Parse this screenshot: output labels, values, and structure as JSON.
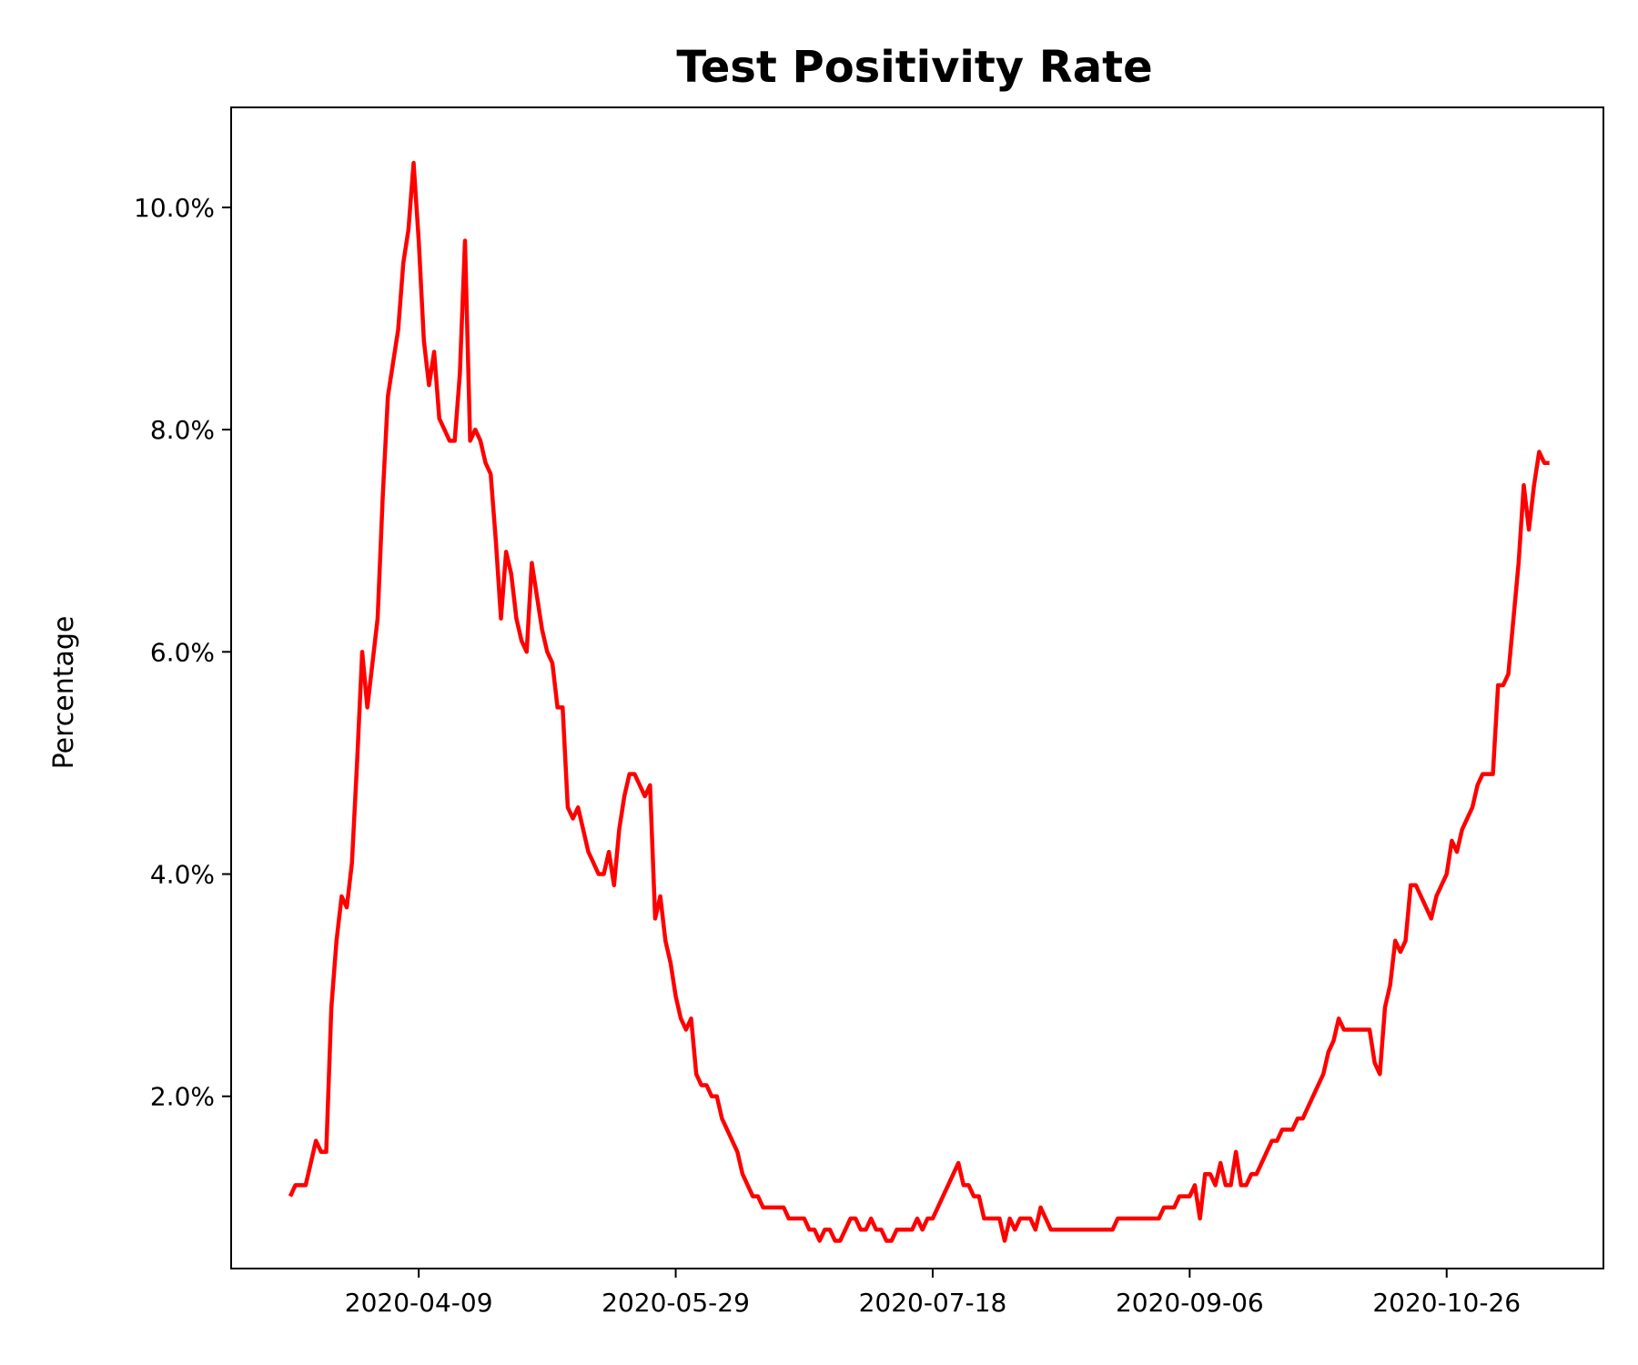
{
  "chart_data": {
    "type": "line",
    "title": "Test Positivity Rate",
    "xlabel": "",
    "ylabel": "Percentage",
    "x_start": "2020-03-15",
    "x_ticks": [
      {
        "date": "2020-04-09",
        "day": 25,
        "label": "2020-04-09"
      },
      {
        "date": "2020-05-29",
        "day": 75,
        "label": "2020-05-29"
      },
      {
        "date": "2020-07-18",
        "day": 125,
        "label": "2020-07-18"
      },
      {
        "date": "2020-09-06",
        "day": 175,
        "label": "2020-09-06"
      },
      {
        "date": "2020-10-26",
        "day": 225,
        "label": "2020-10-26"
      }
    ],
    "y_ticks": [
      {
        "value": 2,
        "label": "2.0%"
      },
      {
        "value": 4,
        "label": "4.0%"
      },
      {
        "value": 6,
        "label": "6.0%"
      },
      {
        "value": 8,
        "label": "8.0%"
      },
      {
        "value": 10,
        "label": "10.0%"
      }
    ],
    "xlim": [
      -11.5,
      255.5
    ],
    "ylim": [
      0.45,
      10.9
    ],
    "grid": false,
    "legend": "none",
    "series": [
      {
        "color": "#ff0000",
        "values": [
          [
            0,
            1.1
          ],
          [
            1,
            1.2
          ],
          [
            2,
            1.2
          ],
          [
            3,
            1.2
          ],
          [
            4,
            1.4
          ],
          [
            5,
            1.6
          ],
          [
            6,
            1.5
          ],
          [
            7,
            1.5
          ],
          [
            8,
            2.8
          ],
          [
            9,
            3.4
          ],
          [
            10,
            3.8
          ],
          [
            11,
            3.7
          ],
          [
            12,
            4.1
          ],
          [
            13,
            5.0
          ],
          [
            14,
            6.0
          ],
          [
            15,
            5.5
          ],
          [
            16,
            5.9
          ],
          [
            17,
            6.3
          ],
          [
            18,
            7.4
          ],
          [
            19,
            8.3
          ],
          [
            20,
            8.6
          ],
          [
            21,
            8.9
          ],
          [
            22,
            9.5
          ],
          [
            23,
            9.8
          ],
          [
            24,
            10.4
          ],
          [
            25,
            9.7
          ],
          [
            26,
            8.8
          ],
          [
            27,
            8.4
          ],
          [
            28,
            8.7
          ],
          [
            29,
            8.1
          ],
          [
            30,
            8.0
          ],
          [
            31,
            7.9
          ],
          [
            32,
            7.9
          ],
          [
            33,
            8.5
          ],
          [
            34,
            9.7
          ],
          [
            35,
            7.9
          ],
          [
            36,
            8.0
          ],
          [
            37,
            7.9
          ],
          [
            38,
            7.7
          ],
          [
            39,
            7.6
          ],
          [
            40,
            7.0
          ],
          [
            41,
            6.3
          ],
          [
            42,
            6.9
          ],
          [
            43,
            6.7
          ],
          [
            44,
            6.3
          ],
          [
            45,
            6.1
          ],
          [
            46,
            6.0
          ],
          [
            47,
            6.8
          ],
          [
            48,
            6.5
          ],
          [
            49,
            6.2
          ],
          [
            50,
            6.0
          ],
          [
            51,
            5.9
          ],
          [
            52,
            5.5
          ],
          [
            53,
            5.5
          ],
          [
            54,
            4.6
          ],
          [
            55,
            4.5
          ],
          [
            56,
            4.6
          ],
          [
            57,
            4.4
          ],
          [
            58,
            4.2
          ],
          [
            59,
            4.1
          ],
          [
            60,
            4.0
          ],
          [
            61,
            4.0
          ],
          [
            62,
            4.2
          ],
          [
            63,
            3.9
          ],
          [
            64,
            4.4
          ],
          [
            65,
            4.7
          ],
          [
            66,
            4.9
          ],
          [
            67,
            4.9
          ],
          [
            68,
            4.8
          ],
          [
            69,
            4.7
          ],
          [
            70,
            4.8
          ],
          [
            71,
            3.6
          ],
          [
            72,
            3.8
          ],
          [
            73,
            3.4
          ],
          [
            74,
            3.2
          ],
          [
            75,
            2.9
          ],
          [
            76,
            2.7
          ],
          [
            77,
            2.6
          ],
          [
            78,
            2.7
          ],
          [
            79,
            2.2
          ],
          [
            80,
            2.1
          ],
          [
            81,
            2.1
          ],
          [
            82,
            2.0
          ],
          [
            83,
            2.0
          ],
          [
            84,
            1.8
          ],
          [
            85,
            1.7
          ],
          [
            86,
            1.6
          ],
          [
            87,
            1.5
          ],
          [
            88,
            1.3
          ],
          [
            89,
            1.2
          ],
          [
            90,
            1.1
          ],
          [
            91,
            1.1
          ],
          [
            92,
            1.0
          ],
          [
            93,
            1.0
          ],
          [
            94,
            1.0
          ],
          [
            95,
            1.0
          ],
          [
            96,
            1.0
          ],
          [
            97,
            0.9
          ],
          [
            98,
            0.9
          ],
          [
            99,
            0.9
          ],
          [
            100,
            0.9
          ],
          [
            101,
            0.8
          ],
          [
            102,
            0.8
          ],
          [
            103,
            0.7
          ],
          [
            104,
            0.8
          ],
          [
            105,
            0.8
          ],
          [
            106,
            0.7
          ],
          [
            107,
            0.7
          ],
          [
            108,
            0.8
          ],
          [
            109,
            0.9
          ],
          [
            110,
            0.9
          ],
          [
            111,
            0.8
          ],
          [
            112,
            0.8
          ],
          [
            113,
            0.9
          ],
          [
            114,
            0.8
          ],
          [
            115,
            0.8
          ],
          [
            116,
            0.7
          ],
          [
            117,
            0.7
          ],
          [
            118,
            0.8
          ],
          [
            119,
            0.8
          ],
          [
            120,
            0.8
          ],
          [
            121,
            0.8
          ],
          [
            122,
            0.9
          ],
          [
            123,
            0.8
          ],
          [
            124,
            0.9
          ],
          [
            125,
            0.9
          ],
          [
            126,
            1.0
          ],
          [
            127,
            1.1
          ],
          [
            128,
            1.2
          ],
          [
            129,
            1.3
          ],
          [
            130,
            1.4
          ],
          [
            131,
            1.2
          ],
          [
            132,
            1.2
          ],
          [
            133,
            1.1
          ],
          [
            134,
            1.1
          ],
          [
            135,
            0.9
          ],
          [
            136,
            0.9
          ],
          [
            137,
            0.9
          ],
          [
            138,
            0.9
          ],
          [
            139,
            0.7
          ],
          [
            140,
            0.9
          ],
          [
            141,
            0.8
          ],
          [
            142,
            0.9
          ],
          [
            143,
            0.9
          ],
          [
            144,
            0.9
          ],
          [
            145,
            0.8
          ],
          [
            146,
            1.0
          ],
          [
            147,
            0.9
          ],
          [
            148,
            0.8
          ],
          [
            149,
            0.8
          ],
          [
            150,
            0.8
          ],
          [
            151,
            0.8
          ],
          [
            152,
            0.8
          ],
          [
            153,
            0.8
          ],
          [
            154,
            0.8
          ],
          [
            155,
            0.8
          ],
          [
            156,
            0.8
          ],
          [
            157,
            0.8
          ],
          [
            158,
            0.8
          ],
          [
            159,
            0.8
          ],
          [
            160,
            0.8
          ],
          [
            161,
            0.9
          ],
          [
            162,
            0.9
          ],
          [
            163,
            0.9
          ],
          [
            164,
            0.9
          ],
          [
            165,
            0.9
          ],
          [
            166,
            0.9
          ],
          [
            167,
            0.9
          ],
          [
            168,
            0.9
          ],
          [
            169,
            0.9
          ],
          [
            170,
            1.0
          ],
          [
            171,
            1.0
          ],
          [
            172,
            1.0
          ],
          [
            173,
            1.1
          ],
          [
            174,
            1.1
          ],
          [
            175,
            1.1
          ],
          [
            176,
            1.2
          ],
          [
            177,
            0.9
          ],
          [
            178,
            1.3
          ],
          [
            179,
            1.3
          ],
          [
            180,
            1.2
          ],
          [
            181,
            1.4
          ],
          [
            182,
            1.2
          ],
          [
            183,
            1.2
          ],
          [
            184,
            1.5
          ],
          [
            185,
            1.2
          ],
          [
            186,
            1.2
          ],
          [
            187,
            1.3
          ],
          [
            188,
            1.3
          ],
          [
            189,
            1.4
          ],
          [
            190,
            1.5
          ],
          [
            191,
            1.6
          ],
          [
            192,
            1.6
          ],
          [
            193,
            1.7
          ],
          [
            194,
            1.7
          ],
          [
            195,
            1.7
          ],
          [
            196,
            1.8
          ],
          [
            197,
            1.8
          ],
          [
            198,
            1.9
          ],
          [
            199,
            2.0
          ],
          [
            200,
            2.1
          ],
          [
            201,
            2.2
          ],
          [
            202,
            2.4
          ],
          [
            203,
            2.5
          ],
          [
            204,
            2.7
          ],
          [
            205,
            2.6
          ],
          [
            206,
            2.6
          ],
          [
            207,
            2.6
          ],
          [
            208,
            2.6
          ],
          [
            209,
            2.6
          ],
          [
            210,
            2.6
          ],
          [
            211,
            2.3
          ],
          [
            212,
            2.2
          ],
          [
            213,
            2.8
          ],
          [
            214,
            3.0
          ],
          [
            215,
            3.4
          ],
          [
            216,
            3.3
          ],
          [
            217,
            3.4
          ],
          [
            218,
            3.9
          ],
          [
            219,
            3.9
          ],
          [
            220,
            3.8
          ],
          [
            221,
            3.7
          ],
          [
            222,
            3.6
          ],
          [
            223,
            3.8
          ],
          [
            224,
            3.9
          ],
          [
            225,
            4.0
          ],
          [
            226,
            4.3
          ],
          [
            227,
            4.2
          ],
          [
            228,
            4.4
          ],
          [
            229,
            4.5
          ],
          [
            230,
            4.6
          ],
          [
            231,
            4.8
          ],
          [
            232,
            4.9
          ],
          [
            233,
            4.9
          ],
          [
            234,
            4.9
          ],
          [
            235,
            5.7
          ],
          [
            236,
            5.7
          ],
          [
            237,
            5.8
          ],
          [
            238,
            6.3
          ],
          [
            239,
            6.8
          ],
          [
            240,
            7.5
          ],
          [
            241,
            7.1
          ],
          [
            242,
            7.5
          ],
          [
            243,
            7.8
          ],
          [
            244,
            7.7
          ],
          [
            245,
            7.7
          ]
        ]
      }
    ]
  }
}
